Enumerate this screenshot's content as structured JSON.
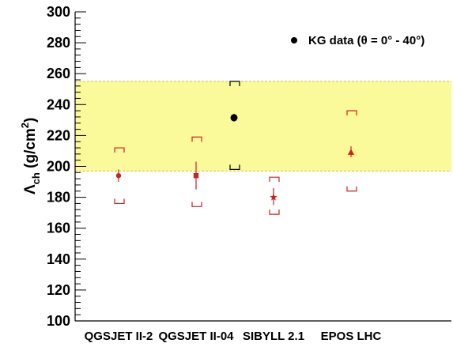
{
  "chart_data": {
    "type": "scatter",
    "title": "",
    "xlabel": "",
    "ylabel": {
      "main": "Λ",
      "sub": "ch",
      "unit_open": " (g/cm",
      "sup": "2",
      "unit_close": ")"
    },
    "ylim": [
      100,
      300
    ],
    "yticks": [
      "100",
      "120",
      "140",
      "160",
      "180",
      "200",
      "220",
      "240",
      "260",
      "280",
      "300"
    ],
    "categories": [
      "QGSJET II-2",
      "QGSJET II-04",
      "SIBYLL 2.1",
      "EPOS LHC"
    ],
    "legend": {
      "label": "KG data (θ = 0° - 40°)",
      "placement": "top-right"
    },
    "band": {
      "low": 197,
      "high": 255,
      "color": "#fafa9a",
      "edge_color": "#e0c030"
    },
    "series": [
      {
        "name": "KG data (θ = 0° - 40°)",
        "marker": "circle",
        "color": "#000000",
        "points": [
          {
            "category_index": 1.5,
            "value": 231.5,
            "stat_low": 229,
            "stat_high": 234,
            "sys_low": 198,
            "sys_high": 255
          }
        ]
      },
      {
        "name": "",
        "color": "#cc2222",
        "points": [
          {
            "category_index": 0,
            "marker": "circle",
            "value": 194,
            "stat_low": 190,
            "stat_high": 198,
            "sys_low": 176,
            "sys_high": 212
          },
          {
            "category_index": 1,
            "marker": "square",
            "value": 194,
            "stat_low": 185,
            "stat_high": 203,
            "sys_low": 174,
            "sys_high": 219
          },
          {
            "category_index": 2,
            "marker": "star",
            "value": 180,
            "stat_low": 175,
            "stat_high": 186,
            "sys_low": 169,
            "sys_high": 193
          },
          {
            "category_index": 3,
            "marker": "triangle",
            "value": 209,
            "stat_low": 206,
            "stat_high": 213,
            "sys_low": 184,
            "sys_high": 236
          }
        ]
      }
    ],
    "grid": false
  }
}
